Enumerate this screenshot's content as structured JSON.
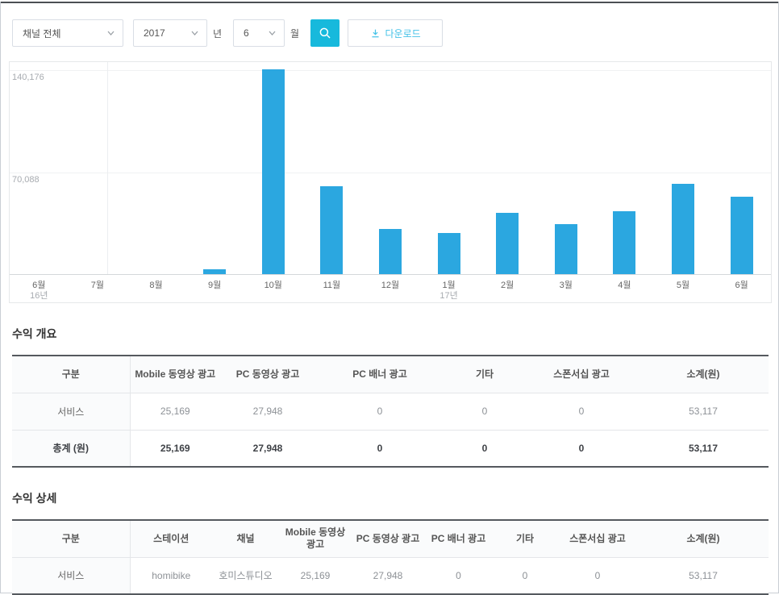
{
  "toolbar": {
    "channel_select": {
      "value": "채널 전체"
    },
    "year_select": {
      "value": "2017"
    },
    "year_suffix": "년",
    "month_select": {
      "value": "6"
    },
    "month_suffix": "월",
    "download_label": "다운로드"
  },
  "chart_data": {
    "type": "bar",
    "categories": [
      "6월",
      "7월",
      "8월",
      "9월",
      "10월",
      "11월",
      "12월",
      "1월",
      "2월",
      "3월",
      "4월",
      "5월",
      "6월"
    ],
    "values": [
      0,
      0,
      0,
      3300,
      140176,
      60100,
      30900,
      28100,
      41900,
      34200,
      43000,
      61800,
      53117
    ],
    "category_year_labels": {
      "0": "16년",
      "7": "17년"
    },
    "ytick_labels": [
      "140,176",
      "70,088"
    ],
    "yticks": [
      140176,
      70088
    ],
    "ylim": [
      0,
      140176
    ],
    "bar_color": "#2ba7e0",
    "title": "",
    "xlabel": "",
    "ylabel": ""
  },
  "sections": {
    "overview": {
      "title": "수익 개요",
      "columns": [
        "구분",
        "Mobile 동영상 광고",
        "PC 동영상 광고",
        "PC 배너 광고",
        "기타",
        "스폰서십 광고",
        "소계(원)"
      ],
      "rows": [
        {
          "label": "서비스",
          "values": [
            "25,169",
            "27,948",
            "0",
            "0",
            "0",
            "53,117"
          ],
          "bold": false
        },
        {
          "label": "총계 (원)",
          "values": [
            "25,169",
            "27,948",
            "0",
            "0",
            "0",
            "53,117"
          ],
          "bold": true
        }
      ]
    },
    "detail": {
      "title": "수익 상세",
      "columns": [
        "구분",
        "스테이션",
        "채널",
        "Mobile 동영상 광고",
        "PC 동영상 광고",
        "PC 배너 광고",
        "기타",
        "스폰서십 광고",
        "소계(원)"
      ],
      "rows": [
        {
          "label": "서비스",
          "values": [
            "homibike",
            "호미스튜디오",
            "25,169",
            "27,948",
            "0",
            "0",
            "0",
            "53,117"
          ],
          "bold": false
        }
      ]
    }
  },
  "colors": {
    "bar": "#2ba7e0",
    "search_button": "#17b9dc",
    "download_text": "#45c2e8",
    "table_rule": "#55595e"
  }
}
